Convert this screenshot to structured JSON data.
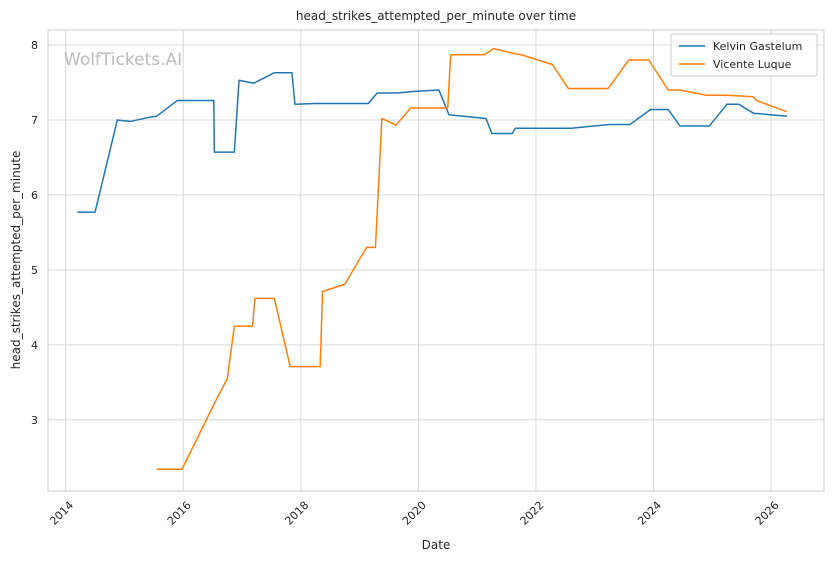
{
  "chart_data": {
    "type": "line",
    "title": "head_strikes_attempted_per_minute over time",
    "xlabel": "Date",
    "ylabel": "head_strikes_attempted_per_minute",
    "watermark": "WolfTickets.AI",
    "xlim": [
      2013.7,
      2026.9
    ],
    "ylim": [
      2.05,
      8.2
    ],
    "x_ticks": [
      2014,
      2016,
      2018,
      2020,
      2022,
      2024,
      2026
    ],
    "x_tick_labels": [
      "2014",
      "2016",
      "2018",
      "2020",
      "2022",
      "2024",
      "2026"
    ],
    "y_ticks": [
      3,
      4,
      5,
      6,
      7,
      8
    ],
    "y_tick_labels": [
      "3",
      "4",
      "5",
      "6",
      "7",
      "8"
    ],
    "grid": true,
    "legend_position": "top-right",
    "series": [
      {
        "name": "Kelvin Gastelum",
        "color": "#1f77b4",
        "points": [
          [
            2014.2,
            5.77
          ],
          [
            2014.5,
            5.77
          ],
          [
            2014.88,
            7.0
          ],
          [
            2015.1,
            6.98
          ],
          [
            2015.45,
            7.04
          ],
          [
            2015.55,
            7.05
          ],
          [
            2015.9,
            7.26
          ],
          [
            2016.52,
            7.26
          ],
          [
            2016.53,
            6.57
          ],
          [
            2016.87,
            6.57
          ],
          [
            2016.95,
            7.53
          ],
          [
            2017.2,
            7.49
          ],
          [
            2017.55,
            7.63
          ],
          [
            2017.85,
            7.63
          ],
          [
            2017.9,
            7.21
          ],
          [
            2018.25,
            7.22
          ],
          [
            2019.15,
            7.22
          ],
          [
            2019.3,
            7.36
          ],
          [
            2019.65,
            7.36
          ],
          [
            2019.9,
            7.38
          ],
          [
            2020.35,
            7.4
          ],
          [
            2020.52,
            7.07
          ],
          [
            2021.15,
            7.02
          ],
          [
            2021.25,
            6.82
          ],
          [
            2021.6,
            6.82
          ],
          [
            2021.65,
            6.89
          ],
          [
            2022.6,
            6.89
          ],
          [
            2023.25,
            6.94
          ],
          [
            2023.6,
            6.94
          ],
          [
            2023.95,
            7.14
          ],
          [
            2024.25,
            7.14
          ],
          [
            2024.45,
            6.92
          ],
          [
            2024.95,
            6.92
          ],
          [
            2025.25,
            7.21
          ],
          [
            2025.45,
            7.21
          ],
          [
            2025.7,
            7.09
          ],
          [
            2026.27,
            7.05
          ]
        ]
      },
      {
        "name": "Vicente Luque",
        "color": "#ff7f0e",
        "points": [
          [
            2015.55,
            2.34
          ],
          [
            2015.98,
            2.34
          ],
          [
            2016.55,
            3.25
          ],
          [
            2016.75,
            3.55
          ],
          [
            2016.87,
            4.25
          ],
          [
            2017.18,
            4.25
          ],
          [
            2017.22,
            4.62
          ],
          [
            2017.55,
            4.62
          ],
          [
            2017.82,
            3.71
          ],
          [
            2018.33,
            3.71
          ],
          [
            2018.37,
            4.71
          ],
          [
            2018.75,
            4.81
          ],
          [
            2019.12,
            5.3
          ],
          [
            2019.27,
            5.3
          ],
          [
            2019.38,
            7.02
          ],
          [
            2019.62,
            6.93
          ],
          [
            2019.87,
            7.16
          ],
          [
            2020.5,
            7.16
          ],
          [
            2020.55,
            7.87
          ],
          [
            2021.12,
            7.87
          ],
          [
            2021.28,
            7.95
          ],
          [
            2021.35,
            7.94
          ],
          [
            2021.6,
            7.89
          ],
          [
            2021.75,
            7.87
          ],
          [
            2022.28,
            7.74
          ],
          [
            2022.55,
            7.42
          ],
          [
            2023.23,
            7.42
          ],
          [
            2023.58,
            7.8
          ],
          [
            2023.92,
            7.8
          ],
          [
            2024.25,
            7.4
          ],
          [
            2024.45,
            7.4
          ],
          [
            2024.9,
            7.33
          ],
          [
            2025.25,
            7.33
          ],
          [
            2025.7,
            7.31
          ],
          [
            2025.75,
            7.26
          ],
          [
            2026.27,
            7.11
          ]
        ]
      }
    ]
  }
}
